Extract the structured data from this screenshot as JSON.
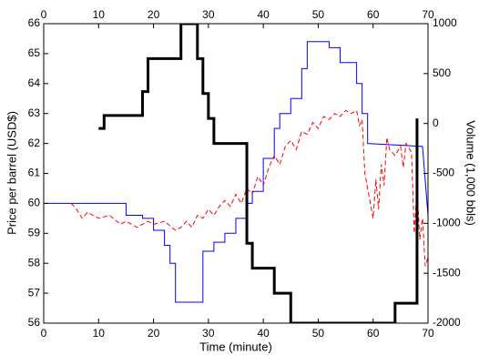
{
  "chart_data": {
    "type": "line",
    "xlabel": "Time (minute)",
    "ylabel": "Price per barrel (USD$)",
    "y2label": "Volume (1,000 bbls)",
    "xlim": [
      0,
      70
    ],
    "xticks": [
      0,
      10,
      20,
      30,
      40,
      50,
      60,
      70
    ],
    "ylim": [
      56,
      66
    ],
    "yticks": [
      56,
      57,
      58,
      59,
      60,
      61,
      62,
      63,
      64,
      65,
      66
    ],
    "y2lim": [
      -2000,
      1000
    ],
    "y2ticks": [
      -2000,
      -1500,
      -1000,
      -500,
      0,
      500,
      1000
    ],
    "grid": false,
    "series": [
      {
        "color": "#0000ff",
        "linestyle": "solid",
        "x": [
          0,
          15,
          15,
          18,
          18,
          20,
          20,
          22,
          22,
          23,
          23,
          24,
          24,
          29,
          29,
          31,
          31,
          33,
          33,
          35,
          35,
          37,
          37,
          38,
          38,
          40,
          40,
          42,
          42,
          43,
          43,
          45,
          45,
          47,
          47,
          48,
          48,
          52,
          52,
          54,
          54,
          57,
          57,
          58,
          58,
          59,
          59,
          69,
          70
        ],
        "values": [
          60,
          60,
          59.6,
          59.6,
          59.5,
          59.5,
          59.1,
          59.1,
          58.6,
          58.6,
          58,
          58,
          56.7,
          56.7,
          58.4,
          58.4,
          58.7,
          58.7,
          59,
          59,
          59.5,
          59.5,
          60,
          60,
          60.4,
          60.4,
          61.5,
          61.5,
          62.5,
          62.5,
          63,
          63,
          63.5,
          63.5,
          64.5,
          64.5,
          65.4,
          65.4,
          65.2,
          65.2,
          64.7,
          64.7,
          64,
          64,
          63,
          63,
          62,
          61.9,
          59.6
        ]
      },
      {
        "color": "#ff0000",
        "linestyle": "dashed",
        "x": [
          5,
          6,
          7,
          8,
          10,
          12,
          14,
          15,
          17,
          19,
          20,
          22,
          24,
          25,
          26,
          27,
          28,
          29,
          30,
          31,
          32,
          33,
          34,
          35,
          36,
          37,
          38,
          39,
          40,
          41,
          42,
          43,
          44,
          45,
          46,
          47,
          48,
          49,
          50,
          51,
          52,
          53,
          54,
          55,
          56,
          57,
          57.5,
          58,
          58.5,
          59,
          59.5,
          60,
          60.5,
          61,
          61.5,
          62,
          62.5,
          63,
          64,
          65,
          65.5,
          66,
          67,
          67.5,
          68,
          68.5,
          69,
          69.5,
          70
        ],
        "values": [
          60,
          59.8,
          59.5,
          59.7,
          59.5,
          59.6,
          59.3,
          59.4,
          59.2,
          59.4,
          59.3,
          59.4,
          59.1,
          59.2,
          59.4,
          59.2,
          59.6,
          59.5,
          59.8,
          59.6,
          59.9,
          60.1,
          59.9,
          60.3,
          60.0,
          60.5,
          60.3,
          60.9,
          60.6,
          61.2,
          61.6,
          61.3,
          61.9,
          62.1,
          61.8,
          62.4,
          62.3,
          62.7,
          62.5,
          62.9,
          62.8,
          63.0,
          62.9,
          63.1,
          63.0,
          63.1,
          62.6,
          62.8,
          61.0,
          60.5,
          60.0,
          59.5,
          60.8,
          59.8,
          61.3,
          60.6,
          62.2,
          61.8,
          61.6,
          61.9,
          61.2,
          62.0,
          61.7,
          59.0,
          60.5,
          58.8,
          59.5,
          57.9,
          58.2
        ]
      },
      {
        "color": "#000000",
        "linestyle": "solid",
        "axis": "y2",
        "x": [
          10,
          11,
          11,
          18,
          18,
          19,
          19,
          25,
          25,
          28,
          28,
          29,
          29,
          30,
          30,
          31,
          31,
          37,
          37,
          38,
          38,
          42,
          42,
          45,
          45,
          64,
          64,
          68,
          68
        ],
        "values": [
          -50,
          -50,
          80,
          80,
          320,
          320,
          650,
          650,
          1000,
          1000,
          650,
          650,
          300,
          300,
          50,
          50,
          -200,
          -200,
          -1200,
          -1200,
          -1450,
          -1450,
          -1700,
          -1700,
          -2000,
          -2000,
          -1800,
          -1800,
          50
        ]
      }
    ]
  }
}
